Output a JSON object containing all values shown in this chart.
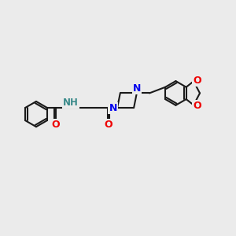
{
  "bg_color": "#ebebeb",
  "bond_color": "#1a1a1a",
  "N_color": "#0000ee",
  "O_color": "#ee0000",
  "H_color": "#3a8a8a",
  "line_width": 1.5,
  "figsize": [
    3.0,
    3.0
  ],
  "dpi": 100,
  "xlim": [
    0,
    12
  ],
  "ylim": [
    0,
    10
  ]
}
